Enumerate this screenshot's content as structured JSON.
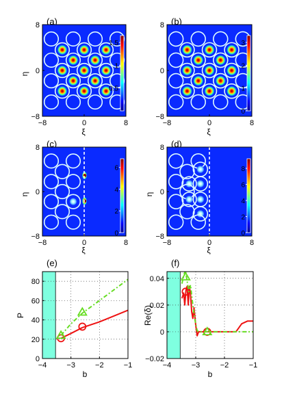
{
  "chart_data": [
    {
      "panel": "(a)",
      "type": "heatmap",
      "ylabel": "η",
      "xlabel": "ξ",
      "xlim": [
        -8,
        8
      ],
      "ylim": [
        -8,
        8
      ],
      "xticks": [
        "−8",
        "0",
        "8"
      ],
      "yticks": [
        "8",
        "0",
        "−8"
      ],
      "colorbar": {
        "ticks": [
          "1.5",
          "1",
          "0.5"
        ],
        "values": [
          1.5,
          1,
          0.5
        ],
        "max": 1.65,
        "min": 0
      },
      "spots": [
        {
          "x": -6.3,
          "y": 5.5,
          "peak": 0
        },
        {
          "x": -2.1,
          "y": 5.5,
          "peak": 0
        },
        {
          "x": 2.1,
          "y": 5.5,
          "peak": 0
        },
        {
          "x": 6.3,
          "y": 5.5,
          "peak": 0
        },
        {
          "x": -4.2,
          "y": 3.6,
          "peak": 1
        },
        {
          "x": 0,
          "y": 3.6,
          "peak": 1
        },
        {
          "x": 4.2,
          "y": 3.6,
          "peak": 1
        },
        {
          "x": -6.3,
          "y": 1.8,
          "peak": 0
        },
        {
          "x": -2.1,
          "y": 1.8,
          "peak": 1
        },
        {
          "x": 2.1,
          "y": 1.8,
          "peak": 1
        },
        {
          "x": 6.3,
          "y": 1.8,
          "peak": 0
        },
        {
          "x": -4.2,
          "y": 0,
          "peak": 1
        },
        {
          "x": 0,
          "y": 0,
          "peak": 1
        },
        {
          "x": 4.2,
          "y": 0,
          "peak": 1
        },
        {
          "x": -6.3,
          "y": -1.8,
          "peak": 0
        },
        {
          "x": -2.1,
          "y": -1.8,
          "peak": 1
        },
        {
          "x": 2.1,
          "y": -1.8,
          "peak": 1
        },
        {
          "x": 6.3,
          "y": -1.8,
          "peak": 0
        },
        {
          "x": -4.2,
          "y": -3.6,
          "peak": 1
        },
        {
          "x": 0,
          "y": -3.6,
          "peak": 1
        },
        {
          "x": 4.2,
          "y": -3.6,
          "peak": 1
        },
        {
          "x": -6.3,
          "y": -5.5,
          "peak": 0
        },
        {
          "x": -2.1,
          "y": -5.5,
          "peak": 0
        },
        {
          "x": 2.1,
          "y": -5.5,
          "peak": 0
        },
        {
          "x": 6.3,
          "y": -5.5,
          "peak": 0
        }
      ]
    },
    {
      "panel": "(b)",
      "type": "heatmap",
      "ylabel": "",
      "xlabel": "ξ",
      "xlim": [
        -8,
        8
      ],
      "ylim": [
        -8,
        8
      ],
      "xticks": [
        "−8",
        "0",
        "8"
      ],
      "yticks": [
        "8",
        "0",
        "−8"
      ],
      "colorbar": {
        "ticks": [
          "3",
          "2",
          "1",
          "0"
        ],
        "values": [
          3,
          2,
          1,
          0
        ],
        "max": 3.3,
        "min": 0
      },
      "spots": [
        {
          "x": -6.3,
          "y": 5.5,
          "peak": 0
        },
        {
          "x": -2.1,
          "y": 5.5,
          "peak": 0
        },
        {
          "x": 2.1,
          "y": 5.5,
          "peak": 0
        },
        {
          "x": 6.3,
          "y": 5.5,
          "peak": 0
        },
        {
          "x": -4.2,
          "y": 3.6,
          "peak": 1
        },
        {
          "x": 0,
          "y": 3.6,
          "peak": 1
        },
        {
          "x": 4.2,
          "y": 3.6,
          "peak": 1
        },
        {
          "x": -6.3,
          "y": 1.8,
          "peak": 0
        },
        {
          "x": -2.1,
          "y": 1.8,
          "peak": 1
        },
        {
          "x": 2.1,
          "y": 1.8,
          "peak": 1
        },
        {
          "x": 6.3,
          "y": 1.8,
          "peak": 0
        },
        {
          "x": -4.2,
          "y": 0,
          "peak": 1
        },
        {
          "x": 0,
          "y": 0,
          "peak": 1
        },
        {
          "x": 4.2,
          "y": 0,
          "peak": 1
        },
        {
          "x": -6.3,
          "y": -1.8,
          "peak": 0
        },
        {
          "x": -2.1,
          "y": -1.8,
          "peak": 1
        },
        {
          "x": 2.1,
          "y": -1.8,
          "peak": 1
        },
        {
          "x": 6.3,
          "y": -1.8,
          "peak": 0
        },
        {
          "x": -4.2,
          "y": -3.6,
          "peak": 1
        },
        {
          "x": 0,
          "y": -3.6,
          "peak": 1
        },
        {
          "x": 4.2,
          "y": -3.6,
          "peak": 1
        },
        {
          "x": -6.3,
          "y": -5.5,
          "peak": 0
        },
        {
          "x": -2.1,
          "y": -5.5,
          "peak": 0
        },
        {
          "x": 2.1,
          "y": -5.5,
          "peak": 0
        },
        {
          "x": 6.3,
          "y": -5.5,
          "peak": 0
        }
      ]
    },
    {
      "panel": "(c)",
      "type": "heatmap",
      "ylabel": "η",
      "xlabel": "ξ",
      "xlim": [
        -8,
        8
      ],
      "ylim": [
        -8,
        8
      ],
      "xticks": [
        "−8",
        "0",
        "8"
      ],
      "yticks": [
        "8",
        "0",
        "−8"
      ],
      "colorbar": {
        "ticks": [
          "6",
          "4",
          "2",
          "0"
        ],
        "values": [
          6,
          4,
          2,
          0
        ],
        "max": 6.8,
        "min": 0
      },
      "boundary_x": 0,
      "spots": [
        {
          "x": -6.3,
          "y": 5.5,
          "peak": 0
        },
        {
          "x": -2.1,
          "y": 5.5,
          "peak": 0
        },
        {
          "x": -4.2,
          "y": 3.6,
          "peak": 0
        },
        {
          "x": -6.3,
          "y": 1.8,
          "peak": 0
        },
        {
          "x": -2.1,
          "y": 1.8,
          "peak": 0
        },
        {
          "x": -4.2,
          "y": 0,
          "peak": 0
        },
        {
          "x": -6.3,
          "y": -1.8,
          "peak": 0
        },
        {
          "x": -2.1,
          "y": -1.8,
          "peak": 0.35
        },
        {
          "x": -4.2,
          "y": -3.6,
          "peak": 0
        },
        {
          "x": -6.3,
          "y": -5.5,
          "peak": 0
        },
        {
          "x": -2.1,
          "y": -5.5,
          "peak": 0
        },
        {
          "x": 0,
          "y": 2.9,
          "peak": 1,
          "half": true
        },
        {
          "x": 0,
          "y": -1.7,
          "peak": 1,
          "half": true
        }
      ]
    },
    {
      "panel": "(d)",
      "type": "heatmap",
      "ylabel": "η",
      "xlabel": "ξ",
      "xlim": [
        -8,
        8
      ],
      "ylim": [
        -8,
        8
      ],
      "xticks": [
        "−8",
        "0",
        "8"
      ],
      "yticks": [
        "8",
        "0",
        "−8"
      ],
      "colorbar": {
        "ticks": [
          "8",
          "6",
          "4",
          "2",
          "0"
        ],
        "values": [
          8,
          6,
          4,
          2,
          0
        ],
        "max": 9.2,
        "min": 0
      },
      "boundary_x": 0,
      "spots": [
        {
          "x": -6.3,
          "y": 5.5,
          "peak": 0
        },
        {
          "x": -2.1,
          "y": 5.5,
          "peak": 0
        },
        {
          "x": -4.2,
          "y": 3.6,
          "peak": 0
        },
        {
          "x": -1.7,
          "y": 4.0,
          "peak": 0.3
        },
        {
          "x": -6.3,
          "y": 1.8,
          "peak": 0
        },
        {
          "x": -3.8,
          "y": 1.4,
          "peak": 0.3
        },
        {
          "x": -1.7,
          "y": 1.4,
          "peak": 0.3
        },
        {
          "x": -4.2,
          "y": 0,
          "peak": 0
        },
        {
          "x": -6.3,
          "y": -1.8,
          "peak": 0
        },
        {
          "x": -3.8,
          "y": -1.4,
          "peak": 0.3
        },
        {
          "x": -1.7,
          "y": -1.4,
          "peak": 0.3
        },
        {
          "x": -4.2,
          "y": -3.6,
          "peak": 0
        },
        {
          "x": -1.7,
          "y": -4.0,
          "peak": 0.3
        },
        {
          "x": -6.3,
          "y": -5.5,
          "peak": 0
        },
        {
          "x": -2.1,
          "y": -5.5,
          "peak": 0
        }
      ]
    },
    {
      "panel": "(e)",
      "type": "line",
      "xlabel": "b",
      "ylabel": "P",
      "xlim": [
        -4,
        -1
      ],
      "ylim": [
        0,
        90
      ],
      "xticks": [
        -4,
        -3,
        -2,
        -1
      ],
      "xtick_labels": [
        "−4",
        "−3",
        "−2",
        "−1"
      ],
      "yticks": [
        0,
        20,
        40,
        60,
        80
      ],
      "ytick_labels": [
        "0",
        "20",
        "40",
        "60",
        "80"
      ],
      "grid": true,
      "shaded_region": [
        -4,
        -3.54
      ],
      "series": [
        {
          "style": "solid",
          "color": "#ee1111",
          "x": [
            -3.35,
            -3.0,
            -2.6,
            -2.0,
            -1.5,
            -1.0
          ],
          "y": [
            21,
            26,
            32,
            38,
            44,
            50
          ],
          "markers": [
            {
              "x": -3.35,
              "y": 21,
              "shape": "circle"
            },
            {
              "x": -2.6,
              "y": 33,
              "shape": "circle"
            }
          ]
        },
        {
          "style": "dash-dot",
          "color": "#66dd22",
          "x": [
            -3.35,
            -3.0,
            -2.6,
            -2.0,
            -1.5,
            -1.0
          ],
          "y": [
            24,
            36,
            47,
            60,
            71,
            82
          ],
          "markers": [
            {
              "x": -3.35,
              "y": 24,
              "shape": "triangle"
            },
            {
              "x": -2.6,
              "y": 48,
              "shape": "triangle"
            }
          ]
        }
      ]
    },
    {
      "panel": "(f)",
      "type": "line",
      "xlabel": "b",
      "ylabel": "Re(δ)",
      "xlim": [
        -4,
        -1
      ],
      "ylim": [
        -0.02,
        0.045
      ],
      "xticks": [
        -4,
        -3,
        -2,
        -1
      ],
      "xtick_labels": [
        "−4",
        "−3",
        "−2",
        "−1"
      ],
      "yticks": [
        -0.02,
        0,
        0.02,
        0.04
      ],
      "ytick_labels": [
        "−0.02",
        "0",
        "0.02",
        "0.04"
      ],
      "grid": true,
      "shaded_region": [
        -4,
        -3.54
      ],
      "series": [
        {
          "style": "solid",
          "color": "#ee1111",
          "x": [
            -3.48,
            -3.42,
            -3.38,
            -3.34,
            -3.3,
            -3.26,
            -3.22,
            -3.18,
            -3.14,
            -3.1,
            -3.06,
            -3.0,
            -2.95,
            -2.9,
            -2.6,
            -2.0,
            -1.6,
            -1.5,
            -1.4,
            -1.2,
            -1.0
          ],
          "y": [
            0.025,
            0.029,
            0.02,
            0.031,
            0.034,
            0.02,
            0.034,
            0.028,
            0.015,
            0.01,
            0.018,
            0.005,
            -0.003,
            0,
            0,
            0,
            0,
            0.003,
            0.006,
            0.008,
            0.008
          ],
          "markers": [
            {
              "x": -3.35,
              "y": 0.03,
              "shape": "circle"
            },
            {
              "x": -2.6,
              "y": 0,
              "shape": "circle"
            }
          ]
        },
        {
          "style": "dash-dot",
          "color": "#66dd22",
          "x": [
            -3.48,
            -3.42,
            -3.36,
            -3.3,
            -3.24,
            -3.18,
            -3.1,
            -3.02,
            -2.95,
            -2.9,
            -2.6,
            -2.0,
            -1.5,
            -1.0
          ],
          "y": [
            0.036,
            0.042,
            0.046,
            0.038,
            0.03,
            0.035,
            0.02,
            0.008,
            0.001,
            0,
            0,
            0,
            0,
            0
          ],
          "markers": [
            {
              "x": -3.35,
              "y": 0.041,
              "shape": "triangle"
            },
            {
              "x": -2.6,
              "y": 0,
              "shape": "triangle"
            }
          ]
        }
      ]
    }
  ]
}
